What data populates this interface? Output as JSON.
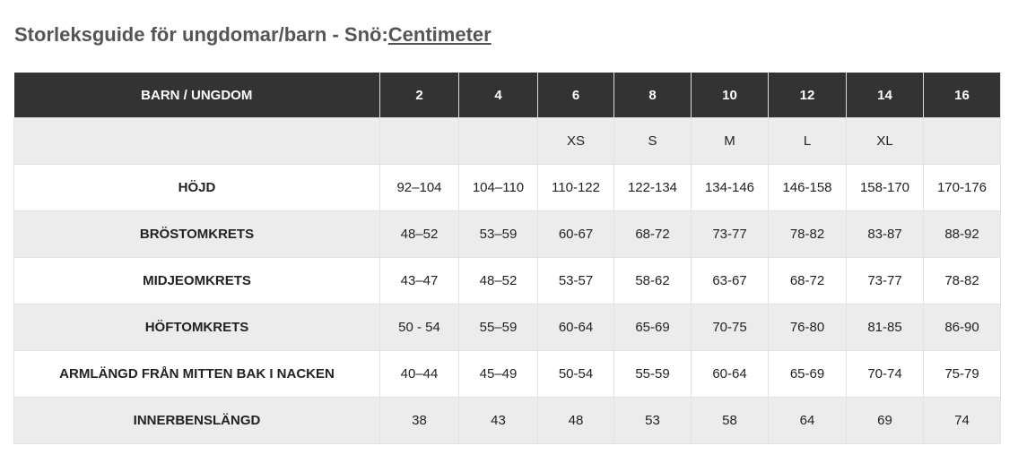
{
  "header": {
    "title": "Storleksguide för ungdomar/barn - Snö:",
    "unit_link": "Centimeter"
  },
  "table": {
    "columns": [
      "BARN / UNGDOM",
      "2",
      "4",
      "6",
      "8",
      "10",
      "12",
      "14",
      "16"
    ],
    "rows": [
      [
        null,
        null,
        null,
        "XS",
        "S",
        "M",
        "L",
        "XL",
        null
      ],
      [
        "HÖJD",
        "92–104",
        "104–110",
        "110-122",
        "122-134",
        "134-146",
        "146-158",
        "158-170",
        "170-176"
      ],
      [
        "BRÖSTOMKRETS",
        "48–52",
        "53–59",
        "60-67",
        "68-72",
        "73-77",
        "78-82",
        "83-87",
        "88-92"
      ],
      [
        "MIDJEOMKRETS",
        "43–47",
        "48–52",
        "53-57",
        "58-62",
        "63-67",
        "68-72",
        "73-77",
        "78-82"
      ],
      [
        "HÖFTOMKRETS",
        "50 - 54",
        "55–59",
        "60-64",
        "65-69",
        "70-75",
        "76-80",
        "81-85",
        "86-90"
      ],
      [
        "ARMLÄNGD FRÅN MITTEN BAK I NACKEN",
        "40–44",
        "45–49",
        "50-54",
        "55-59",
        "60-64",
        "65-69",
        "70-74",
        "75-79"
      ],
      [
        "INNERBENSLÄNGD",
        "38",
        "43",
        "48",
        "53",
        "58",
        "64",
        "69",
        "74"
      ]
    ]
  }
}
